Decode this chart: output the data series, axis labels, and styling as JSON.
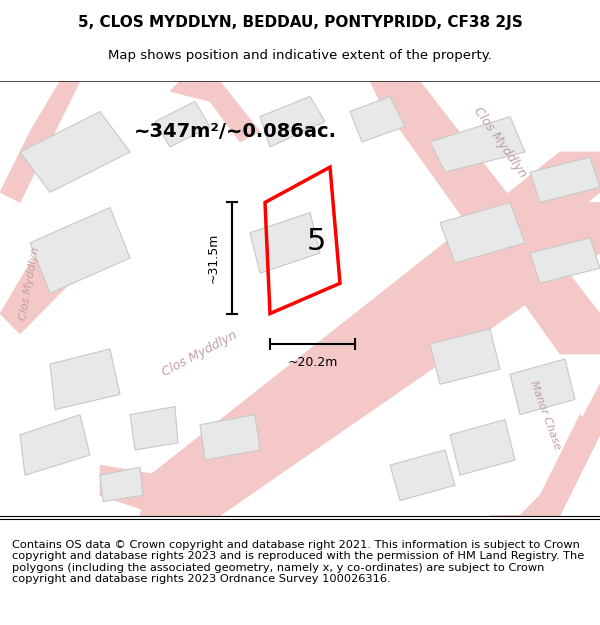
{
  "title": "5, CLOS MYDDLYN, BEDDAU, PONTYPRIDD, CF38 2JS",
  "subtitle": "Map shows position and indicative extent of the property.",
  "footer": "Contains OS data © Crown copyright and database right 2021. This information is subject to Crown copyright and database rights 2023 and is reproduced with the permission of HM Land Registry. The polygons (including the associated geometry, namely x, y co-ordinates) are subject to Crown copyright and database rights 2023 Ordnance Survey 100026316.",
  "bg_color": "#f5f5f0",
  "map_bg": "#f0f0ec",
  "road_color": "#f5c8c8",
  "building_color": "#e8e8e8",
  "building_edge": "#cccccc",
  "highlight_color": "#ff0000",
  "road_label_color": "#c0a0a0",
  "area_text": "~347m²/~0.086ac.",
  "label_5": "5",
  "dim_height": "~31.5m",
  "dim_width": "~20.2m",
  "map_xlim": [
    0,
    1
  ],
  "map_ylim": [
    0,
    1
  ],
  "footer_fontsize": 8.2,
  "title_fontsize": 11,
  "subtitle_fontsize": 9.5
}
